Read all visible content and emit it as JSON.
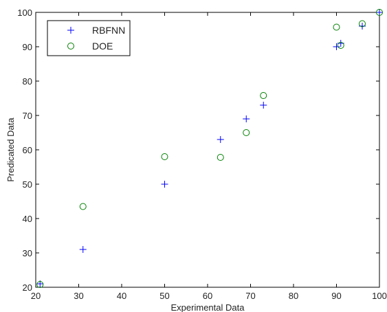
{
  "chart_data": {
    "type": "scatter",
    "title": "",
    "xlabel": "Experimental Data",
    "ylabel": "Predicated Data",
    "xlim": [
      20,
      100
    ],
    "ylim": [
      20,
      100
    ],
    "xticks": [
      20,
      30,
      40,
      50,
      60,
      70,
      80,
      90,
      100
    ],
    "yticks": [
      20,
      30,
      40,
      50,
      60,
      70,
      80,
      90,
      100
    ],
    "grid": false,
    "legend_position": "top-left",
    "series": [
      {
        "name": "RBFNN",
        "marker": "plus",
        "color": "#0000ff",
        "points": [
          [
            21,
            21
          ],
          [
            31,
            31
          ],
          [
            50,
            50
          ],
          [
            63,
            63
          ],
          [
            69,
            69
          ],
          [
            73,
            73
          ],
          [
            90,
            90
          ],
          [
            91,
            91
          ],
          [
            96,
            96
          ],
          [
            100,
            100
          ]
        ]
      },
      {
        "name": "DOE",
        "marker": "circle",
        "color": "#008000",
        "points": [
          [
            21,
            20.8
          ],
          [
            31,
            43.5
          ],
          [
            50,
            58
          ],
          [
            63,
            57.8
          ],
          [
            69,
            65
          ],
          [
            73,
            75.8
          ],
          [
            90,
            95.7
          ],
          [
            91,
            90.4
          ],
          [
            96,
            96.7
          ],
          [
            100,
            100
          ]
        ]
      }
    ]
  }
}
